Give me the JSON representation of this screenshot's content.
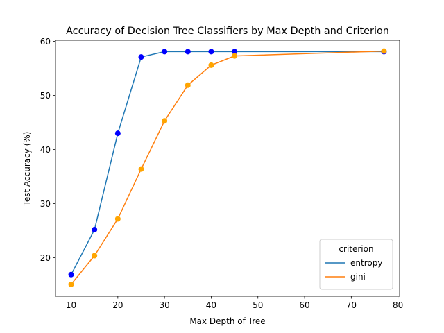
{
  "chart_data": {
    "type": "line",
    "title": "Accuracy of Decision Tree Classifiers by Max Depth and Criterion",
    "xlabel": "Max Depth of Tree",
    "ylabel": "Test Accuracy (%)",
    "xlim": [
      6.65,
      80.35
    ],
    "ylim": [
      12.9,
      60.2
    ],
    "xticks": [
      10,
      20,
      30,
      40,
      50,
      60,
      70,
      80
    ],
    "yticks": [
      20,
      30,
      40,
      50,
      60
    ],
    "grid": false,
    "legend": {
      "title": "criterion",
      "placement": "lower-right"
    },
    "series": [
      {
        "name": "entropy",
        "line_color": "#1f77b4",
        "marker_color": "#0000ff",
        "x": [
          10,
          15,
          20,
          25,
          30,
          35,
          40,
          45,
          77
        ],
        "y": [
          16.9,
          25.2,
          43.0,
          57.1,
          58.1,
          58.1,
          58.1,
          58.1,
          58.1
        ]
      },
      {
        "name": "gini",
        "line_color": "#ff7f0e",
        "marker_color": "#ffa500",
        "x": [
          10,
          15,
          20,
          25,
          30,
          35,
          40,
          45,
          77
        ],
        "y": [
          15.1,
          20.4,
          27.2,
          36.4,
          45.3,
          51.9,
          55.6,
          57.3,
          58.2
        ]
      }
    ]
  }
}
